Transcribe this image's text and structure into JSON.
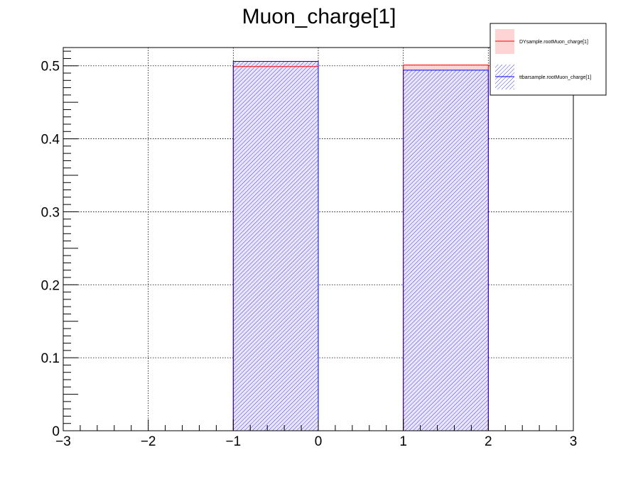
{
  "chart_data": {
    "type": "bar",
    "title": "Muon_charge[1]",
    "xlabel": "",
    "ylabel": "",
    "xlim": [
      -3,
      3
    ],
    "ylim": [
      0,
      0.525
    ],
    "xticks": [
      -3,
      -2,
      -1,
      0,
      1,
      2,
      3
    ],
    "xtick_labels": [
      "−3",
      "−2",
      "−1",
      "0",
      "1",
      "2",
      "3"
    ],
    "yticks": [
      0,
      0.1,
      0.2,
      0.3,
      0.4,
      0.5
    ],
    "ytick_labels": [
      "0",
      "0.1",
      "0.2",
      "0.3",
      "0.4",
      "0.5"
    ],
    "grid": true,
    "legend_position": "top-right",
    "bin_edges": [
      -3,
      -2,
      -1,
      0,
      1,
      2,
      3
    ],
    "series": [
      {
        "name": "DYsample.rootMuon_charge[1]",
        "values": [
          0,
          0,
          0.499,
          0,
          0.501,
          0
        ],
        "color": "#ff0000",
        "fill": "#ffcccc",
        "style": "solid-fill"
      },
      {
        "name": "ttbarsample.rootMuon_charge[1]",
        "values": [
          0,
          0,
          0.506,
          0,
          0.494,
          0
        ],
        "color": "#0000ff",
        "fill": "#0000ff",
        "style": "hatched"
      }
    ]
  }
}
